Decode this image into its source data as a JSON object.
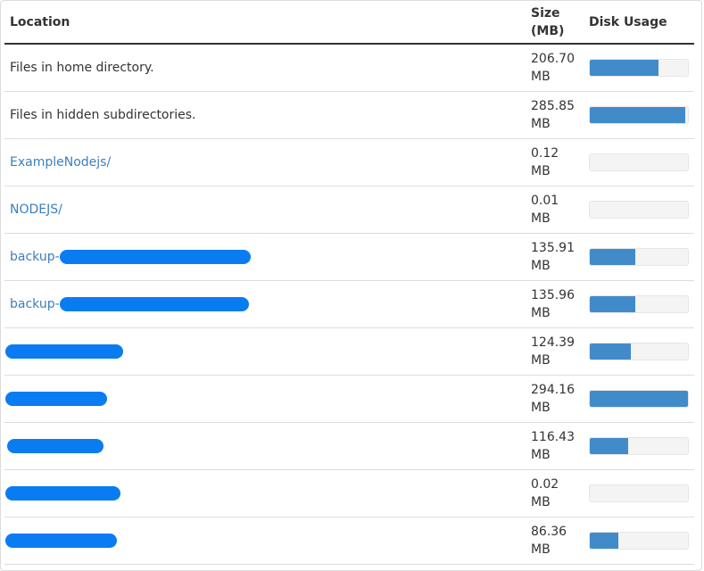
{
  "header": {
    "location": "Location",
    "size_line1": "Size",
    "size_line2": "(MB)",
    "usage": "Disk Usage"
  },
  "colors": {
    "bar_fill": "#428bca",
    "link": "#3b7fbf",
    "redaction": "#0a7cf2"
  },
  "rows": [
    {
      "location": "Files in home directory.",
      "link": false,
      "redacted": false,
      "size": "206.70",
      "unit": "MB",
      "usage_fraction": 0.7
    },
    {
      "location": "Files in hidden subdirectories.",
      "link": false,
      "redacted": false,
      "size": "285.85",
      "unit": "MB",
      "usage_fraction": 0.97
    },
    {
      "location": "ExampleNodejs/",
      "link": true,
      "redacted": false,
      "size": "0.12",
      "unit": "MB",
      "usage_fraction": 0
    },
    {
      "location": "NODEJS/",
      "link": true,
      "redacted": false,
      "size": "0.01",
      "unit": "MB",
      "usage_fraction": 0
    },
    {
      "location": "backup-",
      "link": true,
      "redacted": true,
      "size": "135.91",
      "unit": "MB",
      "usage_fraction": 0.46
    },
    {
      "location": "backup-",
      "link": true,
      "redacted": true,
      "size": "135.96",
      "unit": "MB",
      "usage_fraction": 0.46
    },
    {
      "location": "",
      "link": true,
      "redacted": true,
      "size": "124.39",
      "unit": "MB",
      "usage_fraction": 0.42
    },
    {
      "location": "",
      "link": true,
      "redacted": true,
      "size": "294.16",
      "unit": "MB",
      "usage_fraction": 1.0
    },
    {
      "location": "",
      "link": true,
      "redacted": true,
      "size": "116.43",
      "unit": "MB",
      "usage_fraction": 0.39
    },
    {
      "location": "",
      "link": true,
      "redacted": true,
      "size": "0.02",
      "unit": "MB",
      "usage_fraction": 0
    },
    {
      "location": "",
      "link": true,
      "redacted": true,
      "size": "86.36",
      "unit": "MB",
      "usage_fraction": 0.29
    }
  ]
}
